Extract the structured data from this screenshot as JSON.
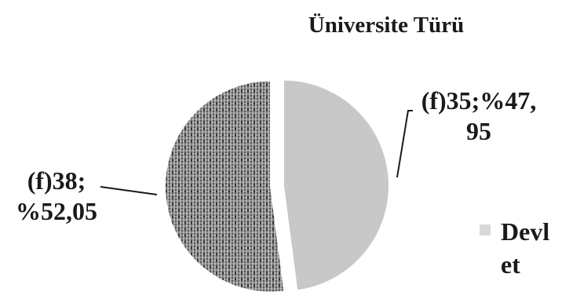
{
  "chart_data": {
    "type": "pie",
    "title": "Üniversite Türü",
    "series": [
      {
        "name": "Devlet",
        "count": 35,
        "percent": 47.95,
        "color": "#c8c8c8",
        "pattern": "solid",
        "label_lines": [
          "(f)35;%47,",
          "95"
        ]
      },
      {
        "count": 38,
        "percent": 52.05,
        "color": "#6e6e6e",
        "pattern": "crosshatch",
        "label_lines": [
          "(f)38;",
          "%52,05"
        ]
      }
    ],
    "legend": {
      "position": "right",
      "items": [
        {
          "label_lines": [
            "Devl",
            "et"
          ],
          "color": "#d8d8d8"
        }
      ]
    }
  }
}
